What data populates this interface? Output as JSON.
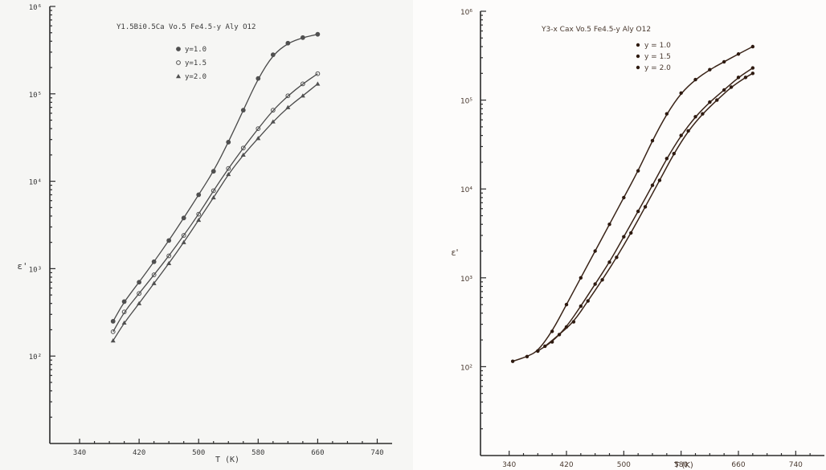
{
  "chart_data": [
    {
      "type": "scatter",
      "title": "Y1.5Bi0.5Ca Vo.5 Fe4.5-y Aly O12",
      "xlabel": "T (K)",
      "ylabel": "ε'",
      "yscale": "log",
      "xlim": [
        300,
        760
      ],
      "ylim": [
        10,
        1000000
      ],
      "x_ticks": [
        "340",
        "420",
        "500",
        "580",
        "660",
        "740"
      ],
      "y_ticks": [
        "10⁶",
        "10⁵",
        "10⁴",
        "10³",
        "10²"
      ],
      "legend": [
        "y=1.0",
        "y=1.5",
        "y=2.0"
      ],
      "legend_position": "top",
      "series": [
        {
          "name": "y=1.0",
          "marker": "circle",
          "x": [
            385,
            400,
            420,
            440,
            460,
            480,
            500,
            520,
            540,
            560,
            580,
            600,
            620,
            640,
            660
          ],
          "y": [
            250,
            420,
            700,
            1200,
            2100,
            3800,
            7000,
            13000,
            28000,
            65000,
            150000,
            280000,
            380000,
            440000,
            480000
          ]
        },
        {
          "name": "y=1.5",
          "marker": "circle-open",
          "x": [
            385,
            400,
            420,
            440,
            460,
            480,
            500,
            520,
            540,
            560,
            580,
            600,
            620,
            640,
            660
          ],
          "y": [
            190,
            320,
            520,
            850,
            1400,
            2400,
            4200,
            7800,
            14000,
            24000,
            40000,
            65000,
            95000,
            130000,
            170000
          ]
        },
        {
          "name": "y=2.0",
          "marker": "triangle",
          "x": [
            385,
            400,
            420,
            440,
            460,
            480,
            500,
            520,
            540,
            560,
            580,
            600,
            620,
            640,
            660
          ],
          "y": [
            150,
            240,
            400,
            680,
            1150,
            2000,
            3600,
            6500,
            12000,
            20000,
            31000,
            48000,
            70000,
            95000,
            130000
          ]
        }
      ]
    },
    {
      "type": "scatter",
      "title": "Y3-x Cax Vo.5 Fe4.5-y Aly O12",
      "xlabel": "T (K)",
      "ylabel": "ε'",
      "yscale": "log",
      "xlim": [
        300,
        780
      ],
      "ylim": [
        10,
        1000000
      ],
      "x_ticks": [
        "340",
        "420",
        "500",
        "580",
        "660",
        "740"
      ],
      "y_ticks": [
        "10⁶",
        "10⁵",
        "10⁴",
        "10³",
        "10²"
      ],
      "legend": [
        "y = 1.0",
        "y = 1.5",
        "y = 2.0"
      ],
      "legend_position": "top",
      "series": [
        {
          "name": "y = 1.0",
          "marker": "dot",
          "x": [
            345,
            365,
            380,
            400,
            420,
            440,
            460,
            480,
            500,
            520,
            540,
            560,
            580,
            600,
            620,
            640,
            660,
            680
          ],
          "y": [
            115,
            130,
            150,
            250,
            500,
            1000,
            2000,
            4000,
            8000,
            16000,
            35000,
            70000,
            120000,
            170000,
            220000,
            270000,
            330000,
            400000
          ]
        },
        {
          "name": "y = 1.5",
          "marker": "dot",
          "x": [
            380,
            400,
            420,
            440,
            460,
            480,
            500,
            520,
            540,
            560,
            580,
            600,
            620,
            640,
            660,
            680
          ],
          "y": [
            150,
            190,
            280,
            480,
            850,
            1500,
            2900,
            5600,
            11000,
            22000,
            40000,
            65000,
            95000,
            130000,
            180000,
            230000
          ]
        },
        {
          "name": "y = 2.0",
          "marker": "dot",
          "x": [
            390,
            410,
            430,
            450,
            470,
            490,
            510,
            530,
            550,
            570,
            590,
            610,
            630,
            650,
            670,
            680
          ],
          "y": [
            170,
            230,
            320,
            550,
            950,
            1700,
            3200,
            6300,
            12500,
            25000,
            45000,
            70000,
            100000,
            140000,
            180000,
            200000
          ]
        }
      ]
    }
  ]
}
